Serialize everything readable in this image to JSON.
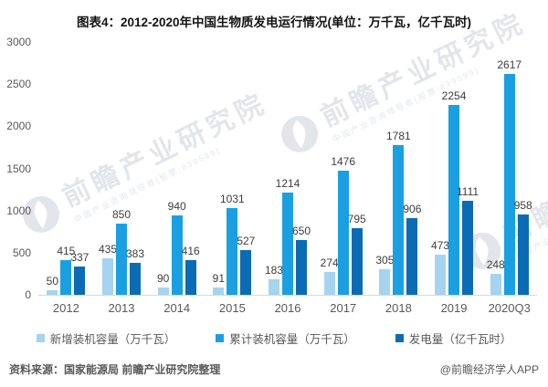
{
  "title": "图表4：2012-2020年中国生物质发电运行情况(单位：万千瓦，亿千瓦时)",
  "watermark": {
    "brand": "前瞻产业研究院",
    "sub": "中国产业咨询领导者(股票:839599)"
  },
  "footer": {
    "source": "资料来源：国家能源局 前瞻产业研究院整理",
    "credit": "@前瞻经济学人APP"
  },
  "colors": {
    "new-capacity": "#a6d3ef",
    "cumulative-capacity": "#1aa0e2",
    "generation": "#0c6bb5",
    "axis_text": "#595959",
    "label_text": "#3d3d3d",
    "baseline": "#d9d9d9"
  },
  "chart_data": {
    "type": "bar",
    "title": "图表4：2012-2020年中国生物质发电运行情况(单位：万千瓦，亿千瓦时)",
    "categories": [
      "2012",
      "2013",
      "2014",
      "2015",
      "2016",
      "2017",
      "2018",
      "2019",
      "2020Q3"
    ],
    "series": [
      {
        "name": "新增装机容量（万千瓦）",
        "key": "new-capacity",
        "values": [
          50,
          435,
          90,
          91,
          183,
          274,
          305,
          473,
          248
        ]
      },
      {
        "name": "累计装机容量（万千瓦）",
        "key": "cumulative-capacity",
        "values": [
          415,
          850,
          940,
          1031,
          1214,
          1476,
          1781,
          2254,
          2617
        ]
      },
      {
        "name": "发电量（亿千瓦时）",
        "key": "generation",
        "values": [
          337,
          383,
          416,
          527,
          650,
          795,
          906,
          1111,
          958
        ]
      }
    ],
    "xlabel": "",
    "ylabel": "",
    "ylim": [
      0,
      3000
    ],
    "yticks": [
      0,
      500,
      1000,
      1500,
      2000,
      2500,
      3000
    ],
    "grid": false,
    "legend_position": "bottom"
  }
}
